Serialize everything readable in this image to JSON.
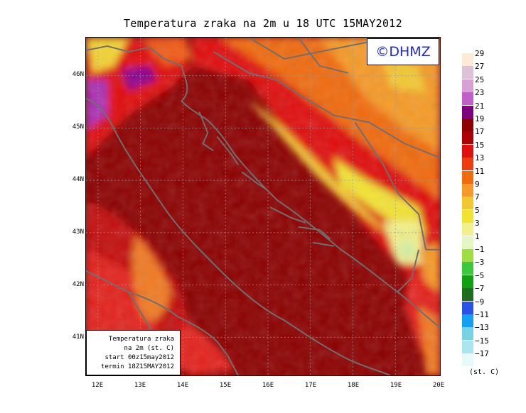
{
  "title": "Temperatura zraka na 2m u 18 UTC 15MAY2012",
  "badge": "©DHMZ",
  "infobox": {
    "line1": "Temperatura zraka",
    "line2": "na 2m (st. C)",
    "line3": "start 00z15may2012",
    "line4": "termin 18Z15MAY2012"
  },
  "lat_labels": [
    "46N",
    "45N",
    "44N",
    "43N",
    "42N",
    "41N"
  ],
  "lon_labels": [
    "12E",
    "13E",
    "14E",
    "15E",
    "16E",
    "17E",
    "18E",
    "19E",
    "20E"
  ],
  "legend": {
    "units": "(st. C)",
    "labels": [
      "29",
      "27",
      "25",
      "23",
      "21",
      "19",
      "17",
      "15",
      "13",
      "11",
      "9",
      "7",
      "5",
      "3",
      "1",
      "−1",
      "−3",
      "−5",
      "−7",
      "−9",
      "−11",
      "−13",
      "−15",
      "−17"
    ],
    "colors": [
      "#fdebd8",
      "#dcc1d9",
      "#d9a0d6",
      "#c060c8",
      "#7e007e",
      "#8c0000",
      "#ad0000",
      "#e01010",
      "#f03a10",
      "#f06a10",
      "#f59a28",
      "#f2c832",
      "#f2e232",
      "#f2f08a",
      "#e6f5c4",
      "#9fdd40",
      "#3cc83c",
      "#10a010",
      "#1e6e1e",
      "#2852e6",
      "#14a0f0",
      "#78d2e6",
      "#aae6f0",
      "#e6fafc"
    ]
  },
  "colors": {
    "sea": "#8c0000",
    "coast": "#6f6f6f",
    "badge_text": "#1c2bd6"
  }
}
